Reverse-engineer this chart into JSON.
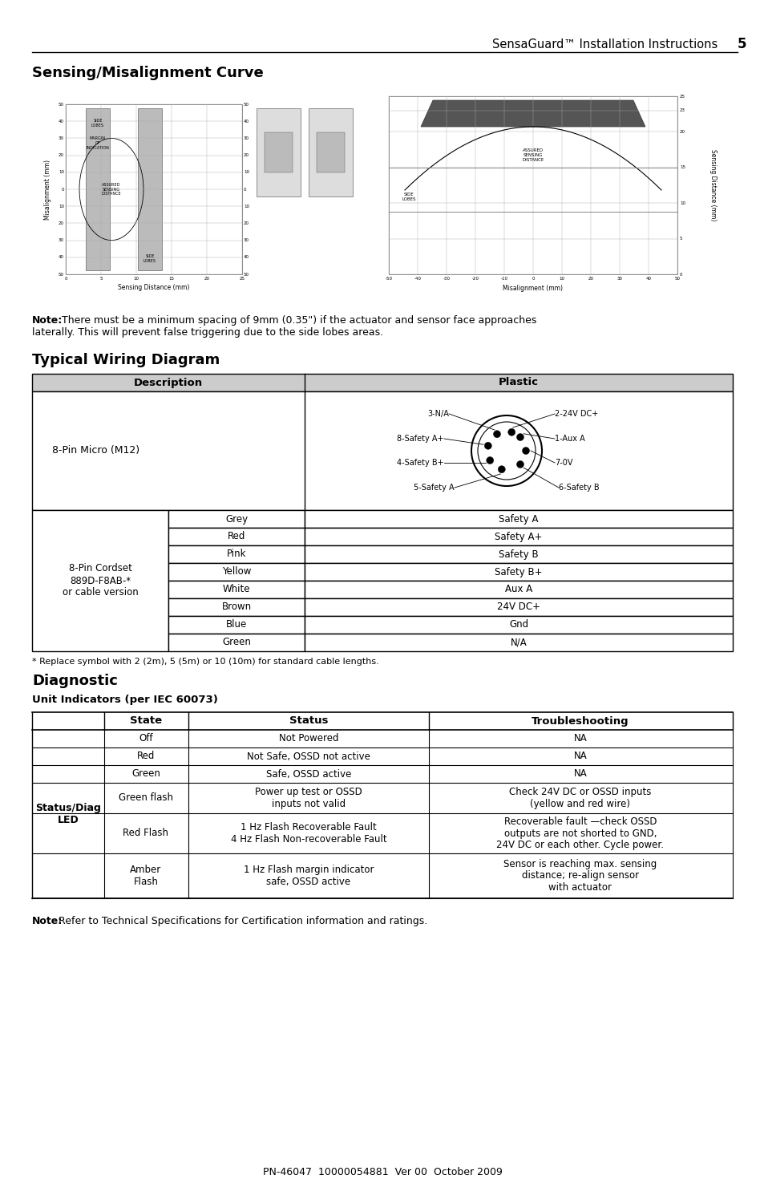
{
  "page_title": "SensaGuard™ Installation Instructions",
  "page_number": "5",
  "section1_title": "Sensing/Misalignment Curve",
  "note1_bold": "Note:",
  "note1_line1": " There must be a minimum spacing of 9mm (0.35\") if the actuator and sensor face approaches",
  "note1_line2": "laterally. This will prevent false triggering due to the side lobes areas.",
  "section2_title": "Typical Wiring Diagram",
  "wiring_desc_header": "Description",
  "wiring_plastic_header": "Plastic",
  "m12_label": "8-Pin Micro (M12)",
  "connector_labels_left": [
    "3-N/A",
    "8-Safety A+",
    "4-Safety B+",
    "5-Safety A"
  ],
  "connector_labels_right": [
    "2-24V DC+",
    "1-Aux A",
    "7-0V",
    "6-Safety B"
  ],
  "wire_colors": [
    "Grey",
    "Red",
    "Pink",
    "Yellow",
    "White",
    "Brown",
    "Blue",
    "Green"
  ],
  "wire_signals": [
    "Safety A",
    "Safety A+",
    "Safety B",
    "Safety B+",
    "Aux A",
    "24V DC+",
    "Gnd",
    "N/A"
  ],
  "cordset_label": "8-Pin Cordset\n889D-F8AB-*\nor cable version",
  "footnote": "* Replace symbol with 2 (2m), 5 (5m) or 10 (10m) for standard cable lengths.",
  "section3_title": "Diagnostic",
  "diag_subtitle": "Unit Indicators (per IEC 60073)",
  "diag_side_label": "Status/Diag\nLED",
  "diag_headers": [
    "State",
    "Status",
    "Troubleshooting"
  ],
  "diag_rows": [
    [
      "Off",
      "Not Powered",
      "NA"
    ],
    [
      "Red",
      "Not Safe, OSSD not active",
      "NA"
    ],
    [
      "Green",
      "Safe, OSSD active",
      "NA"
    ],
    [
      "Green flash",
      "Power up test or OSSD\ninputs not valid",
      "Check 24V DC or OSSD inputs\n(yellow and red wire)"
    ],
    [
      "Red Flash",
      "1 Hz Flash Recoverable Fault\n4 Hz Flash Non-recoverable Fault",
      "Recoverable fault —check OSSD\noutputs are not shorted to GND,\n24V DC or each other. Cycle power."
    ],
    [
      "Amber\nFlash",
      "1 Hz Flash margin indicator\nsafe, OSSD active",
      "Sensor is reaching max. sensing\ndistance; re-align sensor\nwith actuator"
    ]
  ],
  "note2_bold": "Note:",
  "note2_text": " Refer to Technical Specifications for Certification information and ratings.",
  "footer": "PN-46047  10000054881  Ver 00  October 2009",
  "bg_color": "#ffffff"
}
